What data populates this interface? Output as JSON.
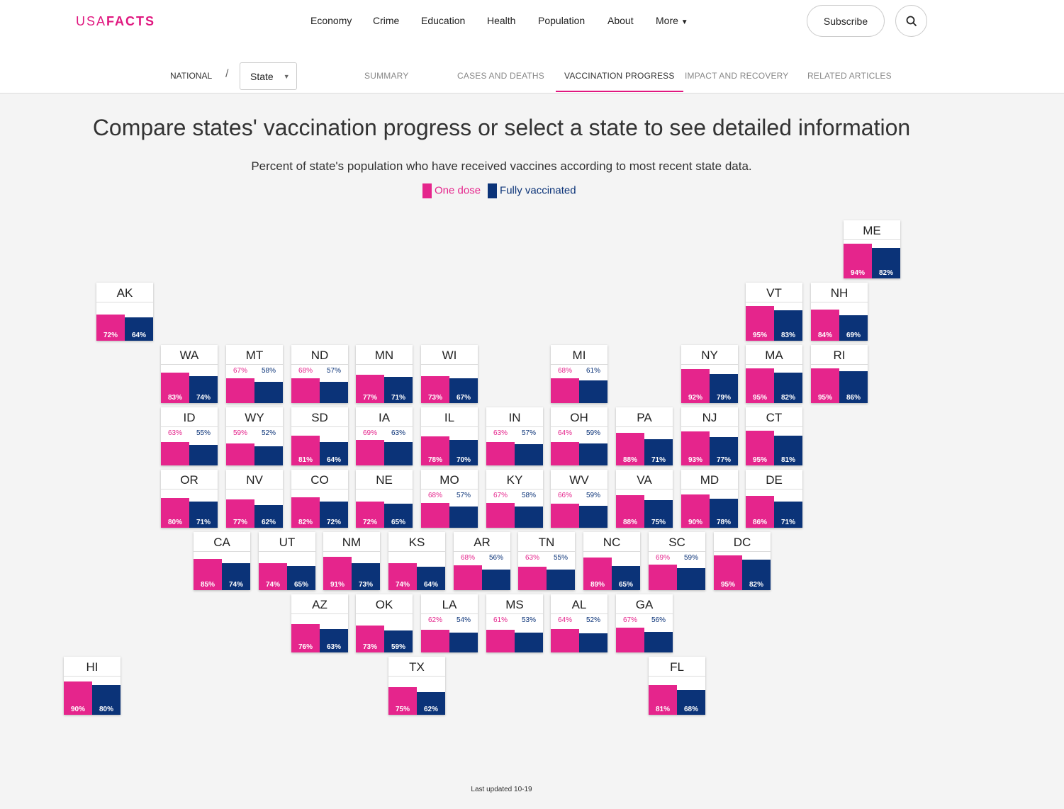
{
  "header": {
    "logo_light": "USA",
    "logo_bold": "FACTS",
    "nav": [
      "Economy",
      "Crime",
      "Education",
      "Health",
      "Population",
      "About",
      "More"
    ],
    "subscribe": "Subscribe"
  },
  "subnav": {
    "national": "NATIONAL",
    "slash": "/",
    "state": "State",
    "tabs": [
      "SUMMARY",
      "CASES AND DEATHS",
      "VACCINATION PROGRESS",
      "IMPACT AND RECOVERY",
      "RELATED ARTICLES"
    ]
  },
  "colors": {
    "one_dose": "#e5258c",
    "fully": "#0b3378"
  },
  "chart_data": {
    "type": "bar",
    "title": "Compare states' vaccination progress or select a state to see detailed information",
    "subtitle": "Percent of state's population who have received vaccines according to most recent state data.",
    "legend": [
      "One dose",
      "Fully vaccinated"
    ],
    "unit": "%",
    "ylim": [
      0,
      100
    ],
    "states": [
      [
        "ME",
        94,
        82
      ],
      [
        "AK",
        72,
        64
      ],
      [
        "VT",
        95,
        83
      ],
      [
        "NH",
        84,
        69
      ],
      [
        "WA",
        83,
        74
      ],
      [
        "MT",
        67,
        58
      ],
      [
        "ND",
        68,
        57
      ],
      [
        "MN",
        77,
        71
      ],
      [
        "WI",
        73,
        67
      ],
      [
        "MI",
        68,
        61
      ],
      [
        "NY",
        92,
        79
      ],
      [
        "MA",
        95,
        82
      ],
      [
        "RI",
        95,
        86
      ],
      [
        "ID",
        63,
        55
      ],
      [
        "WY",
        59,
        52
      ],
      [
        "SD",
        81,
        64
      ],
      [
        "IA",
        69,
        63
      ],
      [
        "IL",
        78,
        70
      ],
      [
        "IN",
        63,
        57
      ],
      [
        "OH",
        64,
        59
      ],
      [
        "PA",
        88,
        71
      ],
      [
        "NJ",
        93,
        77
      ],
      [
        "CT",
        95,
        81
      ],
      [
        "OR",
        80,
        71
      ],
      [
        "NV",
        77,
        62
      ],
      [
        "CO",
        82,
        72
      ],
      [
        "NE",
        72,
        65
      ],
      [
        "MO",
        68,
        57
      ],
      [
        "KY",
        67,
        58
      ],
      [
        "WV",
        66,
        59
      ],
      [
        "VA",
        88,
        75
      ],
      [
        "MD",
        90,
        78
      ],
      [
        "DE",
        86,
        71
      ],
      [
        "CA",
        85,
        74
      ],
      [
        "UT",
        74,
        65
      ],
      [
        "NM",
        91,
        73
      ],
      [
        "KS",
        74,
        64
      ],
      [
        "AR",
        68,
        56
      ],
      [
        "TN",
        63,
        55
      ],
      [
        "NC",
        89,
        65
      ],
      [
        "SC",
        69,
        59
      ],
      [
        "DC",
        95,
        82
      ],
      [
        "AZ",
        76,
        63
      ],
      [
        "OK",
        73,
        59
      ],
      [
        "LA",
        62,
        54
      ],
      [
        "MS",
        61,
        53
      ],
      [
        "AL",
        64,
        52
      ],
      [
        "GA",
        67,
        56
      ],
      [
        "HI",
        90,
        80
      ],
      [
        "TX",
        75,
        62
      ],
      [
        "FL",
        81,
        68
      ]
    ]
  },
  "footer": "Last updated 10-19"
}
